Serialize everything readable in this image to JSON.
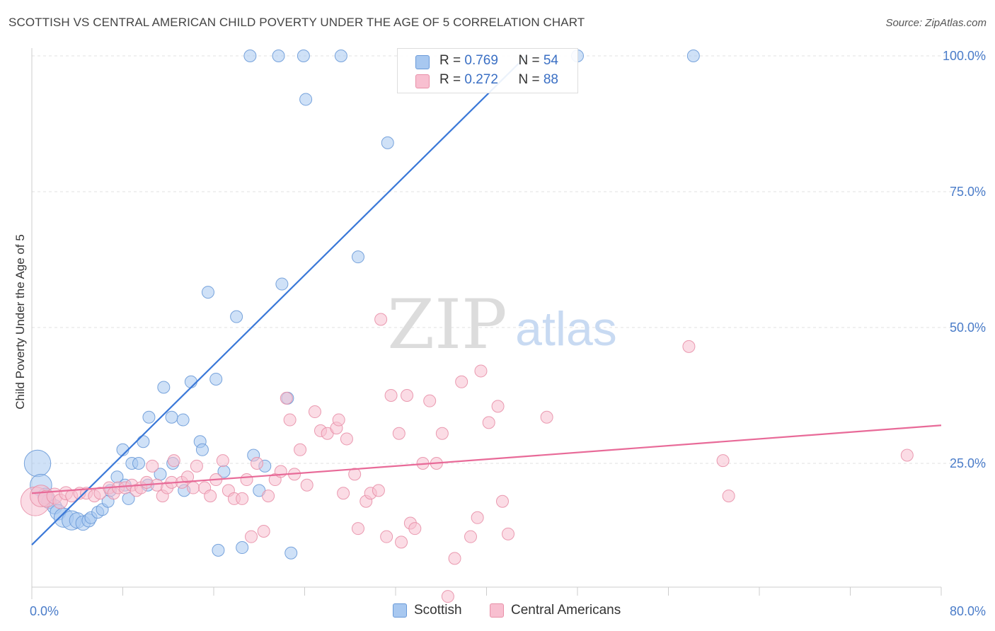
{
  "title": "SCOTTISH VS CENTRAL AMERICAN CHILD POVERTY UNDER THE AGE OF 5 CORRELATION CHART",
  "source": "Source: ZipAtlas.com",
  "watermark": {
    "zip": "ZIP",
    "atlas": "atlas"
  },
  "legend": {
    "rows": [
      {
        "r_label": "R = ",
        "r_value": "0.769",
        "n_label": "N = ",
        "n_value": "54",
        "color": "#a8c8f0",
        "border": "#6a9ad8"
      },
      {
        "r_label": "R = ",
        "r_value": "0.272",
        "n_label": "N = ",
        "n_value": "88",
        "color": "#f8bfd0",
        "border": "#e890a8"
      }
    ]
  },
  "bottom_legend": [
    {
      "label": "Scottish",
      "color": "#a8c8f0",
      "border": "#6a9ad8"
    },
    {
      "label": "Central Americans",
      "color": "#f8bfd0",
      "border": "#e890a8"
    }
  ],
  "chart_data": {
    "type": "scatter",
    "title": "SCOTTISH VS CENTRAL AMERICAN CHILD POVERTY UNDER THE AGE OF 5 CORRELATION CHART",
    "xlabel": "",
    "ylabel": "Child Poverty Under the Age of 5",
    "xlim": [
      0,
      80
    ],
    "ylim": [
      0,
      103
    ],
    "x_tick_labels": [
      "0.0%",
      "80.0%"
    ],
    "y_ticks": [
      25,
      50,
      75,
      100
    ],
    "y_tick_labels": [
      "25.0%",
      "50.0%",
      "75.0%",
      "100.0%"
    ],
    "grid": "horizontal dashed",
    "legend_position": "top-center",
    "series": [
      {
        "name": "Scottish",
        "color": "#a8c8f0",
        "edge": "#6a9ad8",
        "trend": {
          "x": [
            0,
            43.5
          ],
          "y": [
            10,
            100
          ],
          "color": "#3a78d8"
        },
        "points": [
          {
            "x": 0.5,
            "y": 25,
            "s": 2.2
          },
          {
            "x": 0.8,
            "y": 21,
            "s": 1.8
          },
          {
            "x": 1.2,
            "y": 19,
            "s": 1.3
          },
          {
            "x": 1.5,
            "y": 18,
            "s": 1.2
          },
          {
            "x": 2,
            "y": 17,
            "s": 1.2
          },
          {
            "x": 2.3,
            "y": 16,
            "s": 1.3
          },
          {
            "x": 2.8,
            "y": 15,
            "s": 1.6
          },
          {
            "x": 3.5,
            "y": 14.5,
            "s": 1.6
          },
          {
            "x": 4,
            "y": 14.5,
            "s": 1.3
          },
          {
            "x": 4.5,
            "y": 14,
            "s": 1.2
          },
          {
            "x": 5,
            "y": 14.5,
            "s": 1.1
          },
          {
            "x": 5.2,
            "y": 15,
            "s": 1
          },
          {
            "x": 5.8,
            "y": 16,
            "s": 1
          },
          {
            "x": 6.2,
            "y": 16.5,
            "s": 1
          },
          {
            "x": 6.7,
            "y": 18,
            "s": 1
          },
          {
            "x": 6.9,
            "y": 20,
            "s": 1
          },
          {
            "x": 7.5,
            "y": 22.5,
            "s": 1
          },
          {
            "x": 8.2,
            "y": 21,
            "s": 1
          },
          {
            "x": 8.5,
            "y": 18.5,
            "s": 1
          },
          {
            "x": 8,
            "y": 27.5,
            "s": 1
          },
          {
            "x": 8.8,
            "y": 25,
            "s": 1
          },
          {
            "x": 9.4,
            "y": 25,
            "s": 1
          },
          {
            "x": 10.2,
            "y": 21,
            "s": 1
          },
          {
            "x": 10.3,
            "y": 33.5,
            "s": 1
          },
          {
            "x": 9.8,
            "y": 29,
            "s": 1
          },
          {
            "x": 11.3,
            "y": 23,
            "s": 1
          },
          {
            "x": 11.6,
            "y": 39,
            "s": 1
          },
          {
            "x": 12.3,
            "y": 33.5,
            "s": 1
          },
          {
            "x": 12.4,
            "y": 25,
            "s": 1
          },
          {
            "x": 13.4,
            "y": 20,
            "s": 1
          },
          {
            "x": 13.3,
            "y": 33,
            "s": 1
          },
          {
            "x": 14,
            "y": 40,
            "s": 1
          },
          {
            "x": 14.8,
            "y": 29,
            "s": 1
          },
          {
            "x": 15,
            "y": 27.5,
            "s": 1
          },
          {
            "x": 15.5,
            "y": 56.5,
            "s": 1
          },
          {
            "x": 16.2,
            "y": 40.5,
            "s": 1
          },
          {
            "x": 16.4,
            "y": 9,
            "s": 1
          },
          {
            "x": 16.9,
            "y": 23.5,
            "s": 1
          },
          {
            "x": 18,
            "y": 52,
            "s": 1
          },
          {
            "x": 18.5,
            "y": 9.5,
            "s": 1
          },
          {
            "x": 19.5,
            "y": 26.5,
            "s": 1
          },
          {
            "x": 20,
            "y": 20,
            "s": 1
          },
          {
            "x": 20.5,
            "y": 24.5,
            "s": 1
          },
          {
            "x": 22,
            "y": 58,
            "s": 1
          },
          {
            "x": 22.5,
            "y": 37,
            "s": 1
          },
          {
            "x": 22.8,
            "y": 8.5,
            "s": 1
          },
          {
            "x": 19.2,
            "y": 100,
            "s": 1
          },
          {
            "x": 21.7,
            "y": 100,
            "s": 1
          },
          {
            "x": 23.9,
            "y": 100,
            "s": 1
          },
          {
            "x": 24.1,
            "y": 92,
            "s": 1
          },
          {
            "x": 27.2,
            "y": 100,
            "s": 1
          },
          {
            "x": 28.7,
            "y": 63,
            "s": 1
          },
          {
            "x": 31.3,
            "y": 84,
            "s": 1
          },
          {
            "x": 48,
            "y": 100,
            "s": 1
          },
          {
            "x": 58.2,
            "y": 100,
            "s": 1
          }
        ]
      },
      {
        "name": "Central Americans",
        "color": "#f8bfd0",
        "edge": "#e890a8",
        "trend": {
          "x": [
            0,
            80
          ],
          "y": [
            19.5,
            32
          ],
          "color": "#e86a98"
        },
        "points": [
          {
            "x": 0.3,
            "y": 18,
            "s": 2.4
          },
          {
            "x": 0.8,
            "y": 19,
            "s": 1.8
          },
          {
            "x": 1.3,
            "y": 18.5,
            "s": 1.4
          },
          {
            "x": 2,
            "y": 19,
            "s": 1.3
          },
          {
            "x": 2.5,
            "y": 18,
            "s": 1.2
          },
          {
            "x": 3,
            "y": 19.5,
            "s": 1.1
          },
          {
            "x": 3.5,
            "y": 19,
            "s": 1
          },
          {
            "x": 4.2,
            "y": 19.5,
            "s": 1
          },
          {
            "x": 4.8,
            "y": 19.5,
            "s": 1
          },
          {
            "x": 5.5,
            "y": 19,
            "s": 1
          },
          {
            "x": 6,
            "y": 19.5,
            "s": 1
          },
          {
            "x": 6.8,
            "y": 20.5,
            "s": 1
          },
          {
            "x": 7.2,
            "y": 19.5,
            "s": 1
          },
          {
            "x": 7.6,
            "y": 20.5,
            "s": 1
          },
          {
            "x": 8.2,
            "y": 20.5,
            "s": 1
          },
          {
            "x": 8.8,
            "y": 21,
            "s": 1
          },
          {
            "x": 9.2,
            "y": 20,
            "s": 1
          },
          {
            "x": 9.6,
            "y": 20.5,
            "s": 1
          },
          {
            "x": 10.1,
            "y": 21.5,
            "s": 1
          },
          {
            "x": 10.6,
            "y": 24.5,
            "s": 1
          },
          {
            "x": 11,
            "y": 21,
            "s": 1
          },
          {
            "x": 11.5,
            "y": 19,
            "s": 1
          },
          {
            "x": 11.9,
            "y": 20.5,
            "s": 1
          },
          {
            "x": 12.3,
            "y": 21.5,
            "s": 1
          },
          {
            "x": 12.5,
            "y": 25.5,
            "s": 1
          },
          {
            "x": 13.2,
            "y": 21.5,
            "s": 1
          },
          {
            "x": 13.7,
            "y": 22.5,
            "s": 1
          },
          {
            "x": 14.2,
            "y": 20.5,
            "s": 1
          },
          {
            "x": 14.5,
            "y": 24.5,
            "s": 1
          },
          {
            "x": 15.2,
            "y": 20.5,
            "s": 1
          },
          {
            "x": 15.7,
            "y": 19,
            "s": 1
          },
          {
            "x": 16.2,
            "y": 22,
            "s": 1
          },
          {
            "x": 16.8,
            "y": 25.5,
            "s": 1
          },
          {
            "x": 17.3,
            "y": 20,
            "s": 1
          },
          {
            "x": 17.8,
            "y": 18.5,
            "s": 1
          },
          {
            "x": 18.5,
            "y": 18.5,
            "s": 1
          },
          {
            "x": 18.9,
            "y": 22,
            "s": 1
          },
          {
            "x": 19.3,
            "y": 11.5,
            "s": 1
          },
          {
            "x": 19.8,
            "y": 25,
            "s": 1
          },
          {
            "x": 20.4,
            "y": 12.5,
            "s": 1
          },
          {
            "x": 20.8,
            "y": 19,
            "s": 1
          },
          {
            "x": 21.4,
            "y": 22,
            "s": 1
          },
          {
            "x": 21.9,
            "y": 23.5,
            "s": 1
          },
          {
            "x": 22.4,
            "y": 37,
            "s": 1
          },
          {
            "x": 22.7,
            "y": 33,
            "s": 1
          },
          {
            "x": 23.1,
            "y": 23,
            "s": 1
          },
          {
            "x": 23.6,
            "y": 27.5,
            "s": 1
          },
          {
            "x": 24.2,
            "y": 21,
            "s": 1
          },
          {
            "x": 24.9,
            "y": 34.5,
            "s": 1
          },
          {
            "x": 25.4,
            "y": 31,
            "s": 1
          },
          {
            "x": 26,
            "y": 30.5,
            "s": 1
          },
          {
            "x": 26.8,
            "y": 31.5,
            "s": 1
          },
          {
            "x": 27,
            "y": 33,
            "s": 1
          },
          {
            "x": 27.4,
            "y": 19.5,
            "s": 1
          },
          {
            "x": 27.7,
            "y": 29.5,
            "s": 1
          },
          {
            "x": 28.4,
            "y": 23,
            "s": 1
          },
          {
            "x": 28.7,
            "y": 13,
            "s": 1
          },
          {
            "x": 29.4,
            "y": 18,
            "s": 1
          },
          {
            "x": 29.8,
            "y": 19.5,
            "s": 1
          },
          {
            "x": 30.5,
            "y": 20,
            "s": 1
          },
          {
            "x": 31.2,
            "y": 11.5,
            "s": 1
          },
          {
            "x": 31.6,
            "y": 37.5,
            "s": 1
          },
          {
            "x": 32.3,
            "y": 30.5,
            "s": 1
          },
          {
            "x": 32.5,
            "y": 10.5,
            "s": 1
          },
          {
            "x": 33,
            "y": 37.5,
            "s": 1
          },
          {
            "x": 33.3,
            "y": 14,
            "s": 1
          },
          {
            "x": 33.7,
            "y": 13,
            "s": 1
          },
          {
            "x": 34.4,
            "y": 25,
            "s": 1
          },
          {
            "x": 35,
            "y": 36.5,
            "s": 1
          },
          {
            "x": 35.6,
            "y": 25,
            "s": 1
          },
          {
            "x": 36.1,
            "y": 30.5,
            "s": 1
          },
          {
            "x": 36.6,
            "y": 0.5,
            "s": 1
          },
          {
            "x": 37.2,
            "y": 7.5,
            "s": 1
          },
          {
            "x": 37.8,
            "y": 40,
            "s": 1
          },
          {
            "x": 38.6,
            "y": 11.5,
            "s": 1
          },
          {
            "x": 39.2,
            "y": 15,
            "s": 1
          },
          {
            "x": 39.5,
            "y": 42,
            "s": 1
          },
          {
            "x": 40.2,
            "y": 32.5,
            "s": 1
          },
          {
            "x": 41,
            "y": 35.5,
            "s": 1
          },
          {
            "x": 41.4,
            "y": 18,
            "s": 1
          },
          {
            "x": 41.9,
            "y": 12,
            "s": 1
          },
          {
            "x": 45.3,
            "y": 33.5,
            "s": 1
          },
          {
            "x": 30.7,
            "y": 51.5,
            "s": 1
          },
          {
            "x": 57.8,
            "y": 46.5,
            "s": 1
          },
          {
            "x": 60.8,
            "y": 25.5,
            "s": 1
          },
          {
            "x": 61.3,
            "y": 19,
            "s": 1
          },
          {
            "x": 77,
            "y": 26.5,
            "s": 1
          }
        ]
      }
    ]
  }
}
